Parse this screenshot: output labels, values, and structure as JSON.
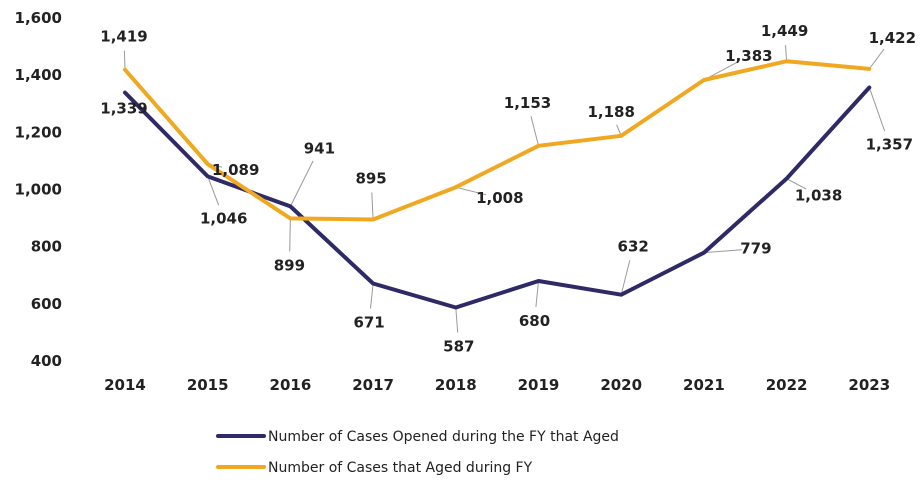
{
  "chart_data": {
    "type": "line",
    "title": "",
    "xlabel": "",
    "ylabel": "",
    "categories": [
      "2014",
      "2015",
      "2016",
      "2017",
      "2018",
      "2019",
      "2020",
      "2021",
      "2022",
      "2023"
    ],
    "ylim": [
      400,
      1600
    ],
    "yticks": [
      400,
      600,
      800,
      1000,
      1200,
      1400,
      1600
    ],
    "grid": false,
    "legend_position": "bottom",
    "series": [
      {
        "name": "Number of Cases Opened during the FY that Aged",
        "color": "#2e2a66",
        "values": [
          1339,
          1046,
          941,
          671,
          587,
          680,
          632,
          779,
          1038,
          1357
        ]
      },
      {
        "name": "Number of Cases that Aged during FY",
        "color": "#f0a820",
        "values": [
          1419,
          1089,
          899,
          895,
          1008,
          1153,
          1188,
          1383,
          1449,
          1422
        ]
      }
    ]
  }
}
